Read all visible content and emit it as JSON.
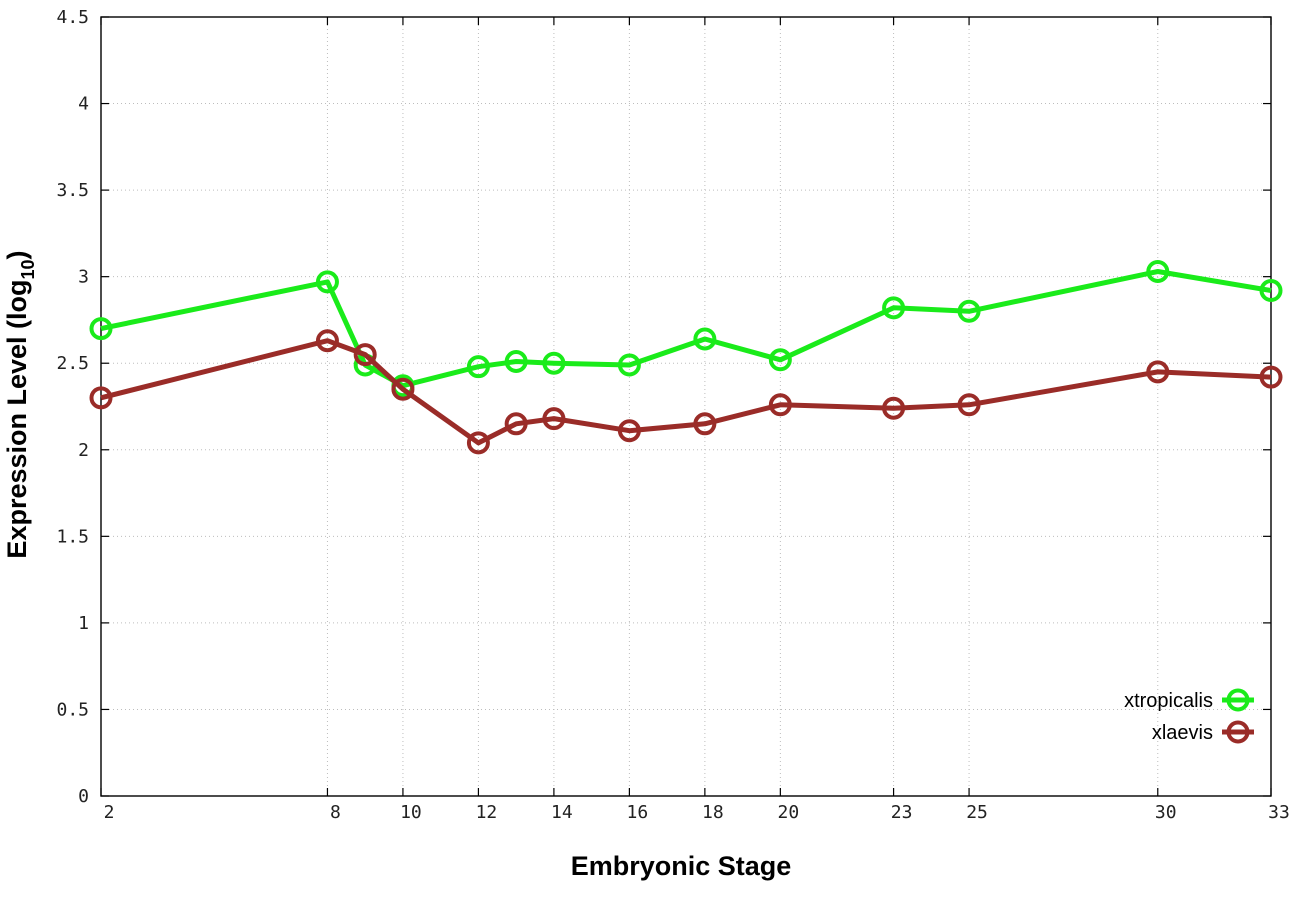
{
  "chart_data": {
    "type": "line",
    "xlabel": "Embryonic Stage",
    "ylabel_main": "Expression Level (log",
    "ylabel_sub": "10",
    "ylabel_close": ")",
    "x": [
      2,
      8,
      9,
      10,
      12,
      13,
      14,
      16,
      18,
      20,
      23,
      25,
      30,
      33
    ],
    "xticks": [
      "2",
      "8",
      "10",
      "12",
      "14",
      "16",
      "18",
      "20",
      "23",
      "25",
      "30",
      "33"
    ],
    "xlim": [
      2,
      33
    ],
    "ylim": [
      0,
      4.5
    ],
    "yticks": [
      "0",
      "0.5",
      "1",
      "1.5",
      "2",
      "2.5",
      "3",
      "3.5",
      "4",
      "4.5"
    ],
    "grid": true,
    "legend_position": "bottom-right",
    "series": [
      {
        "name": "xtropicalis",
        "color": "#1aeb1a",
        "values": [
          2.7,
          2.97,
          2.49,
          2.37,
          2.48,
          2.51,
          2.5,
          2.49,
          2.64,
          2.52,
          2.82,
          2.8,
          3.03,
          2.92
        ]
      },
      {
        "name": "xlaevis",
        "color": "#9a2c28",
        "values": [
          2.3,
          2.63,
          2.55,
          2.35,
          2.04,
          2.15,
          2.18,
          2.11,
          2.15,
          2.26,
          2.24,
          2.26,
          2.45,
          2.42
        ]
      }
    ]
  }
}
